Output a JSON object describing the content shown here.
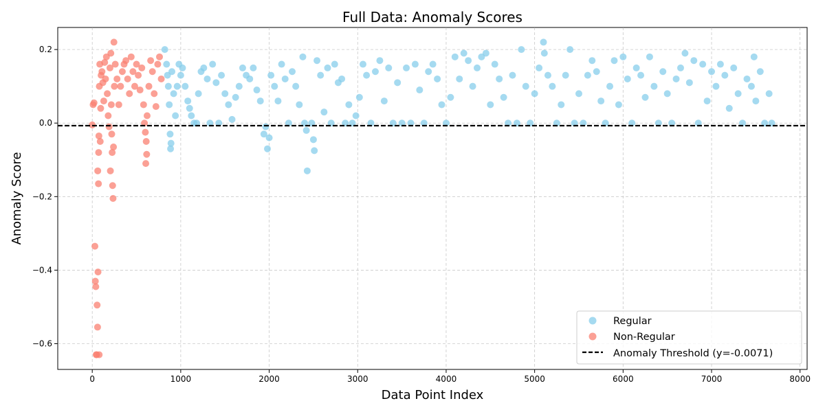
{
  "chart_data": {
    "type": "scatter",
    "title": "Full Data: Anomaly Scores",
    "xlabel": "Data Point Index",
    "ylabel": "Anomaly Score",
    "xlim": [
      -390,
      8080
    ],
    "ylim": [
      -0.67,
      0.26
    ],
    "x_ticks": [
      0,
      1000,
      2000,
      3000,
      4000,
      5000,
      6000,
      7000,
      8000
    ],
    "y_ticks": [
      -0.6,
      -0.4,
      -0.2,
      0.0,
      0.2
    ],
    "x_tick_labels": [
      "0",
      "1000",
      "2000",
      "3000",
      "4000",
      "5000",
      "6000",
      "7000",
      "8000"
    ],
    "y_tick_labels": [
      "−0.6",
      "−0.4",
      "−0.2",
      "0.0",
      "0.2"
    ],
    "grid": true,
    "legend_position": "bottom-right",
    "threshold": {
      "label": "Anomaly Threshold (y=-0.0071)",
      "y": -0.0071,
      "color": "#000000"
    },
    "series": [
      {
        "name": "Regular",
        "color": "#87ceeb",
        "points": [
          [
            820,
            0.2
          ],
          [
            840,
            0.16
          ],
          [
            850,
            0.13
          ],
          [
            860,
            0.1
          ],
          [
            870,
            0.05
          ],
          [
            880,
            -0.03
          ],
          [
            885,
            -0.07
          ],
          [
            890,
            -0.055
          ],
          [
            900,
            0.14
          ],
          [
            920,
            0.08
          ],
          [
            940,
            0.02
          ],
          [
            960,
            0.1
          ],
          [
            980,
            0.16
          ],
          [
            1000,
            0.13
          ],
          [
            1020,
            0.15
          ],
          [
            1050,
            0.1
          ],
          [
            1080,
            0.06
          ],
          [
            1100,
            0.04
          ],
          [
            1120,
            0.02
          ],
          [
            1150,
            0.0
          ],
          [
            1180,
            0.0
          ],
          [
            1200,
            0.08
          ],
          [
            1230,
            0.14
          ],
          [
            1260,
            0.15
          ],
          [
            1300,
            0.12
          ],
          [
            1330,
            0.0
          ],
          [
            1360,
            0.16
          ],
          [
            1400,
            0.11
          ],
          [
            1430,
            0.0
          ],
          [
            1460,
            0.13
          ],
          [
            1500,
            0.08
          ],
          [
            1540,
            0.05
          ],
          [
            1580,
            0.01
          ],
          [
            1620,
            0.07
          ],
          [
            1660,
            0.1
          ],
          [
            1700,
            0.15
          ],
          [
            1740,
            0.13
          ],
          [
            1780,
            0.12
          ],
          [
            1820,
            0.15
          ],
          [
            1860,
            0.09
          ],
          [
            1900,
            0.06
          ],
          [
            1940,
            -0.03
          ],
          [
            1960,
            -0.01
          ],
          [
            1980,
            -0.07
          ],
          [
            2000,
            -0.04
          ],
          [
            2020,
            0.13
          ],
          [
            2060,
            0.1
          ],
          [
            2100,
            0.06
          ],
          [
            2140,
            0.16
          ],
          [
            2180,
            0.12
          ],
          [
            2220,
            0.0
          ],
          [
            2260,
            0.14
          ],
          [
            2300,
            0.1
          ],
          [
            2340,
            0.05
          ],
          [
            2380,
            0.18
          ],
          [
            2400,
            0.0
          ],
          [
            2420,
            -0.02
          ],
          [
            2430,
            -0.13
          ],
          [
            2480,
            0.0
          ],
          [
            2500,
            -0.045
          ],
          [
            2510,
            -0.075
          ],
          [
            2540,
            0.17
          ],
          [
            2580,
            0.13
          ],
          [
            2620,
            0.03
          ],
          [
            2660,
            0.15
          ],
          [
            2700,
            0.0
          ],
          [
            2740,
            0.16
          ],
          [
            2780,
            0.11
          ],
          [
            2820,
            0.12
          ],
          [
            2860,
            0.0
          ],
          [
            2900,
            0.05
          ],
          [
            2940,
            0.0
          ],
          [
            2980,
            0.02
          ],
          [
            3020,
            0.07
          ],
          [
            3060,
            0.16
          ],
          [
            3100,
            0.13
          ],
          [
            3150,
            0.0
          ],
          [
            3200,
            0.14
          ],
          [
            3250,
            0.17
          ],
          [
            3300,
            0.06
          ],
          [
            3350,
            0.15
          ],
          [
            3400,
            0.0
          ],
          [
            3450,
            0.11
          ],
          [
            3500,
            0.0
          ],
          [
            3550,
            0.15
          ],
          [
            3600,
            0.0
          ],
          [
            3650,
            0.16
          ],
          [
            3700,
            0.09
          ],
          [
            3750,
            0.0
          ],
          [
            3800,
            0.14
          ],
          [
            3850,
            0.16
          ],
          [
            3900,
            0.12
          ],
          [
            3950,
            0.05
          ],
          [
            4000,
            0.0
          ],
          [
            4050,
            0.07
          ],
          [
            4100,
            0.18
          ],
          [
            4150,
            0.12
          ],
          [
            4200,
            0.19
          ],
          [
            4250,
            0.17
          ],
          [
            4300,
            0.1
          ],
          [
            4350,
            0.15
          ],
          [
            4400,
            0.18
          ],
          [
            4450,
            0.19
          ],
          [
            4500,
            0.05
          ],
          [
            4550,
            0.16
          ],
          [
            4600,
            0.12
          ],
          [
            4650,
            0.07
          ],
          [
            4700,
            0.0
          ],
          [
            4750,
            0.13
          ],
          [
            4800,
            0.0
          ],
          [
            4850,
            0.2
          ],
          [
            4900,
            0.1
          ],
          [
            4950,
            0.0
          ],
          [
            5000,
            0.08
          ],
          [
            5050,
            0.15
          ],
          [
            5100,
            0.22
          ],
          [
            5110,
            0.19
          ],
          [
            5150,
            0.13
          ],
          [
            5200,
            0.1
          ],
          [
            5250,
            0.0
          ],
          [
            5300,
            0.05
          ],
          [
            5350,
            0.13
          ],
          [
            5400,
            0.2
          ],
          [
            5450,
            0.0
          ],
          [
            5500,
            0.08
          ],
          [
            5550,
            0.0
          ],
          [
            5600,
            0.13
          ],
          [
            5650,
            0.17
          ],
          [
            5700,
            0.14
          ],
          [
            5750,
            0.06
          ],
          [
            5800,
            0.0
          ],
          [
            5850,
            0.1
          ],
          [
            5900,
            0.17
          ],
          [
            5950,
            0.05
          ],
          [
            6000,
            0.18
          ],
          [
            6050,
            0.12
          ],
          [
            6100,
            0.0
          ],
          [
            6150,
            0.15
          ],
          [
            6200,
            0.13
          ],
          [
            6250,
            0.07
          ],
          [
            6300,
            0.18
          ],
          [
            6350,
            0.1
          ],
          [
            6400,
            0.0
          ],
          [
            6450,
            0.14
          ],
          [
            6500,
            0.08
          ],
          [
            6550,
            0.0
          ],
          [
            6600,
            0.12
          ],
          [
            6650,
            0.15
          ],
          [
            6700,
            0.19
          ],
          [
            6750,
            0.11
          ],
          [
            6800,
            0.17
          ],
          [
            6850,
            0.0
          ],
          [
            6900,
            0.16
          ],
          [
            6950,
            0.06
          ],
          [
            7000,
            0.14
          ],
          [
            7050,
            0.1
          ],
          [
            7100,
            0.16
          ],
          [
            7150,
            0.13
          ],
          [
            7200,
            0.04
          ],
          [
            7250,
            0.15
          ],
          [
            7300,
            0.08
          ],
          [
            7350,
            0.0
          ],
          [
            7400,
            0.12
          ],
          [
            7450,
            0.1
          ],
          [
            7480,
            0.18
          ],
          [
            7500,
            0.06
          ],
          [
            7550,
            0.14
          ],
          [
            7600,
            0.0
          ],
          [
            7650,
            0.08
          ],
          [
            7680,
            0.0
          ]
        ]
      },
      {
        "name": "Non-Regular",
        "color": "#fa8072",
        "points": [
          [
            0,
            -0.005
          ],
          [
            10,
            0.05
          ],
          [
            20,
            0.055
          ],
          [
            30,
            -0.335
          ],
          [
            35,
            -0.43
          ],
          [
            40,
            -0.445
          ],
          [
            45,
            -0.63
          ],
          [
            50,
            -0.63
          ],
          [
            55,
            -0.495
          ],
          [
            60,
            -0.555
          ],
          [
            62,
            -0.13
          ],
          [
            65,
            -0.405
          ],
          [
            70,
            -0.165
          ],
          [
            72,
            -0.08
          ],
          [
            75,
            -0.035
          ],
          [
            78,
            -0.63
          ],
          [
            80,
            0.1
          ],
          [
            85,
            0.16
          ],
          [
            90,
            -0.05
          ],
          [
            95,
            0.04
          ],
          [
            100,
            0.13
          ],
          [
            110,
            0.14
          ],
          [
            120,
            0.11
          ],
          [
            130,
            0.06
          ],
          [
            140,
            0.165
          ],
          [
            150,
            0.12
          ],
          [
            160,
            0.18
          ],
          [
            170,
            0.08
          ],
          [
            180,
            0.02
          ],
          [
            190,
            -0.01
          ],
          [
            200,
            0.15
          ],
          [
            205,
            -0.13
          ],
          [
            210,
            0.19
          ],
          [
            215,
            0.05
          ],
          [
            220,
            -0.03
          ],
          [
            225,
            -0.08
          ],
          [
            230,
            -0.17
          ],
          [
            235,
            -0.205
          ],
          [
            240,
            -0.065
          ],
          [
            245,
            0.22
          ],
          [
            250,
            0.1
          ],
          [
            260,
            0.16
          ],
          [
            280,
            0.12
          ],
          [
            300,
            0.05
          ],
          [
            320,
            0.1
          ],
          [
            340,
            0.14
          ],
          [
            360,
            0.16
          ],
          [
            380,
            0.17
          ],
          [
            400,
            0.12
          ],
          [
            420,
            0.08
          ],
          [
            440,
            0.18
          ],
          [
            460,
            0.14
          ],
          [
            480,
            0.1
          ],
          [
            500,
            0.16
          ],
          [
            520,
            0.13
          ],
          [
            540,
            0.09
          ],
          [
            560,
            0.15
          ],
          [
            580,
            0.05
          ],
          [
            590,
            0.0
          ],
          [
            600,
            -0.025
          ],
          [
            605,
            -0.11
          ],
          [
            610,
            -0.05
          ],
          [
            615,
            -0.085
          ],
          [
            620,
            0.02
          ],
          [
            640,
            0.1
          ],
          [
            660,
            0.17
          ],
          [
            680,
            0.14
          ],
          [
            700,
            0.08
          ],
          [
            720,
            0.045
          ],
          [
            740,
            0.16
          ],
          [
            760,
            0.18
          ],
          [
            780,
            0.12
          ]
        ]
      }
    ]
  }
}
